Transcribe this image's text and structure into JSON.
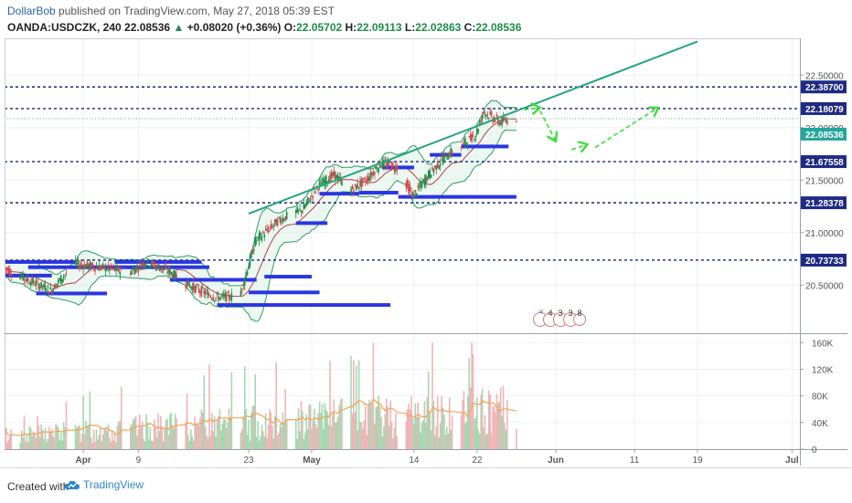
{
  "header": {
    "author": "DollarBob",
    "published_text": "published on TradingView.com, May 27, 2018 05:39 EST",
    "symbol": "OANDA:USDCZK, 240",
    "last": "22.08536",
    "arrow": "▲",
    "change": "+0.08020 (+0.36%)",
    "o_label": "O:",
    "o": "22.05702",
    "h_label": "H:",
    "h": "22.09113",
    "l_label": "L:",
    "l": "22.02863",
    "c_label": "C:",
    "c": "22.08536"
  },
  "footer": {
    "created_with": "Created with",
    "brand": "TradingView"
  },
  "colors": {
    "up": "#1f8c48",
    "down": "#d64550",
    "level": "#1a237e",
    "zone": "#2a36e0",
    "trend": "#26a57c",
    "arrow": "#3ddc3d",
    "volume_up": "#a5d8b0",
    "volume_down": "#f0b4b8",
    "volume_ma": "#f3a35a",
    "band": "#2d9c61",
    "label_bg": "#1f2a85",
    "current_bg": "#26a69a"
  },
  "chart_data": {
    "type": "candlestick",
    "symbol": "OANDA:USDCZK",
    "timeframe": "240",
    "ylim": [
      20.05,
      22.85
    ],
    "price_ticks": [
      "22.50000",
      "22.00000",
      "21.50000",
      "21.00000",
      "20.50000"
    ],
    "price_tick_values": [
      22.5,
      22.0,
      21.5,
      21.0,
      20.5
    ],
    "x_ticks": [
      "Apr",
      "9",
      "23",
      "May",
      "14",
      "22",
      "Jun",
      "11",
      "19",
      "Jul"
    ],
    "x_tick_dates": [
      "2018-04-02",
      "2018-04-09",
      "2018-04-23",
      "2018-05-01",
      "2018-05-14",
      "2018-05-22",
      "2018-06-01",
      "2018-06-11",
      "2018-06-19",
      "2018-07-01"
    ],
    "x_range": [
      "2018-03-23",
      "2018-07-02"
    ],
    "horizontal_levels": [
      "22.38700",
      "22.18079",
      "21.67558",
      "21.28378",
      "20.73733"
    ],
    "current_price": "22.08536",
    "trendline": {
      "start": [
        "2018-04-23",
        21.18
      ],
      "end": [
        "2018-06-19",
        22.82
      ]
    },
    "zones": [
      {
        "start": "2018-03-23",
        "end": "2018-04-01",
        "price": 20.72
      },
      {
        "start": "2018-03-26",
        "end": "2018-04-18",
        "price": 20.67
      },
      {
        "start": "2018-04-06",
        "end": "2018-04-17",
        "price": 20.72
      },
      {
        "start": "2018-04-13",
        "end": "2018-04-24",
        "price": 20.55
      },
      {
        "start": "2018-04-19",
        "end": "2018-05-11",
        "price": 20.31
      },
      {
        "start": "2018-04-23",
        "end": "2018-05-02",
        "price": 20.43
      },
      {
        "start": "2018-04-25",
        "end": "2018-05-01",
        "price": 20.58
      },
      {
        "start": "2018-03-23",
        "end": "2018-03-29",
        "price": 20.59
      },
      {
        "start": "2018-03-27",
        "end": "2018-04-05",
        "price": 20.42
      },
      {
        "start": "2018-04-29",
        "end": "2018-05-03",
        "price": 21.09
      },
      {
        "start": "2018-05-02",
        "end": "2018-05-07",
        "price": 21.37
      },
      {
        "start": "2018-05-07",
        "end": "2018-05-12",
        "price": 21.38
      },
      {
        "start": "2018-05-10",
        "end": "2018-05-14",
        "price": 21.62
      },
      {
        "start": "2018-05-12",
        "end": "2018-05-27",
        "price": 21.34
      },
      {
        "start": "2018-05-20",
        "end": "2018-05-26",
        "price": 21.82
      },
      {
        "start": "2018-05-16",
        "end": "2018-05-20",
        "price": 21.74
      }
    ],
    "price_path": [
      [
        "2018-03-23",
        20.67
      ],
      [
        "2018-03-26",
        20.55
      ],
      [
        "2018-03-29",
        20.45
      ],
      [
        "2018-04-01",
        20.7
      ],
      [
        "2018-04-05",
        20.66
      ],
      [
        "2018-04-08",
        20.62
      ],
      [
        "2018-04-10",
        20.72
      ],
      [
        "2018-04-13",
        20.63
      ],
      [
        "2018-04-16",
        20.48
      ],
      [
        "2018-04-19",
        20.38
      ],
      [
        "2018-04-22",
        20.4
      ],
      [
        "2018-04-24",
        20.92
      ],
      [
        "2018-04-27",
        21.12
      ],
      [
        "2018-04-30",
        21.22
      ],
      [
        "2018-05-02",
        21.45
      ],
      [
        "2018-05-04",
        21.55
      ],
      [
        "2018-05-06",
        21.4
      ],
      [
        "2018-05-08",
        21.5
      ],
      [
        "2018-05-10",
        21.66
      ],
      [
        "2018-05-12",
        21.62
      ],
      [
        "2018-05-13",
        21.48
      ],
      [
        "2018-05-14",
        21.35
      ],
      [
        "2018-05-16",
        21.55
      ],
      [
        "2018-05-18",
        21.72
      ],
      [
        "2018-05-20",
        21.82
      ],
      [
        "2018-05-22",
        21.94
      ],
      [
        "2018-05-23",
        22.15
      ],
      [
        "2018-05-25",
        22.05
      ],
      [
        "2018-05-27",
        22.09
      ]
    ],
    "forecast_arrows": [
      {
        "from": [
          "2018-05-28",
          22.17
        ],
        "to": [
          "2018-05-30",
          22.19
        ]
      },
      {
        "from": [
          "2018-05-30",
          22.16
        ],
        "to": [
          "2018-06-01",
          21.87
        ]
      },
      {
        "from": [
          "2018-06-03",
          21.79
        ],
        "to": [
          "2018-06-05",
          21.84
        ]
      },
      {
        "from": [
          "2018-06-06",
          21.81
        ],
        "to": [
          "2018-06-14",
          22.19
        ]
      }
    ],
    "volume": {
      "ylim": [
        0,
        170000
      ],
      "ticks": [
        "160K",
        "120K",
        "80K",
        "40K",
        "0"
      ],
      "tick_values": [
        160000,
        120000,
        80000,
        40000,
        0
      ],
      "ma_start": 22000,
      "ma_end": 62000,
      "max": 160000
    },
    "events": [
      "4",
      "3",
      "3",
      "8"
    ]
  }
}
